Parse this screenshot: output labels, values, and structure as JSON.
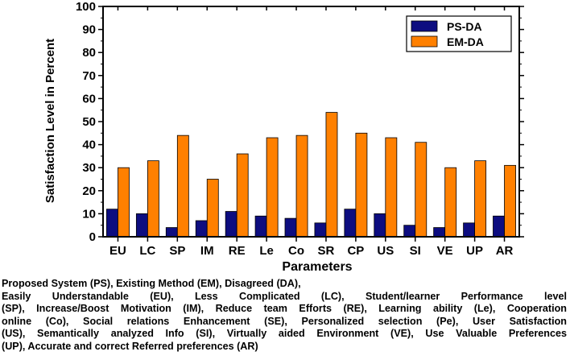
{
  "chart_data": {
    "type": "bar",
    "title": "",
    "xlabel": "Parameters",
    "ylabel": "Satisfaction Level in Percent",
    "ylim": [
      0,
      100
    ],
    "yticks": [
      0,
      10,
      20,
      30,
      40,
      50,
      60,
      70,
      80,
      90,
      100
    ],
    "categories": [
      "EU",
      "LC",
      "SP",
      "IM",
      "RE",
      "Le",
      "Co",
      "SR",
      "CP",
      "US",
      "SI",
      "VE",
      "UP",
      "AR"
    ],
    "series": [
      {
        "name": "PS-DA",
        "color": "#0d0d80",
        "values": [
          12,
          10,
          4,
          7,
          11,
          9,
          8,
          6,
          12,
          10,
          5,
          4,
          6,
          9
        ]
      },
      {
        "name": "EM-DA",
        "color": "#ff8000",
        "values": [
          30,
          33,
          44,
          25,
          36,
          43,
          44,
          54,
          45,
          43,
          41,
          30,
          33,
          31
        ]
      }
    ],
    "legend": "top-right",
    "grid": false
  },
  "caption": {
    "lines": [
      "Proposed System (PS), Existing Method (EM), Disagreed (DA),",
      "Easily Understandable (EU), Less Complicated (LC), Student/learner Performance level",
      "(SP), Increase/Boost Motivation (IM), Reduce team Efforts (RE), Learning ability (Le), Cooperation",
      "online (Co), Social relations Enhancement (SE), Personalized selection (Pe), User Satisfaction",
      "(US), Semantically analyzed Info (SI), Virtually aided Environment (VE), Use Valuable Preferences",
      "(UP), Accurate and correct Referred preferences (AR)"
    ]
  }
}
